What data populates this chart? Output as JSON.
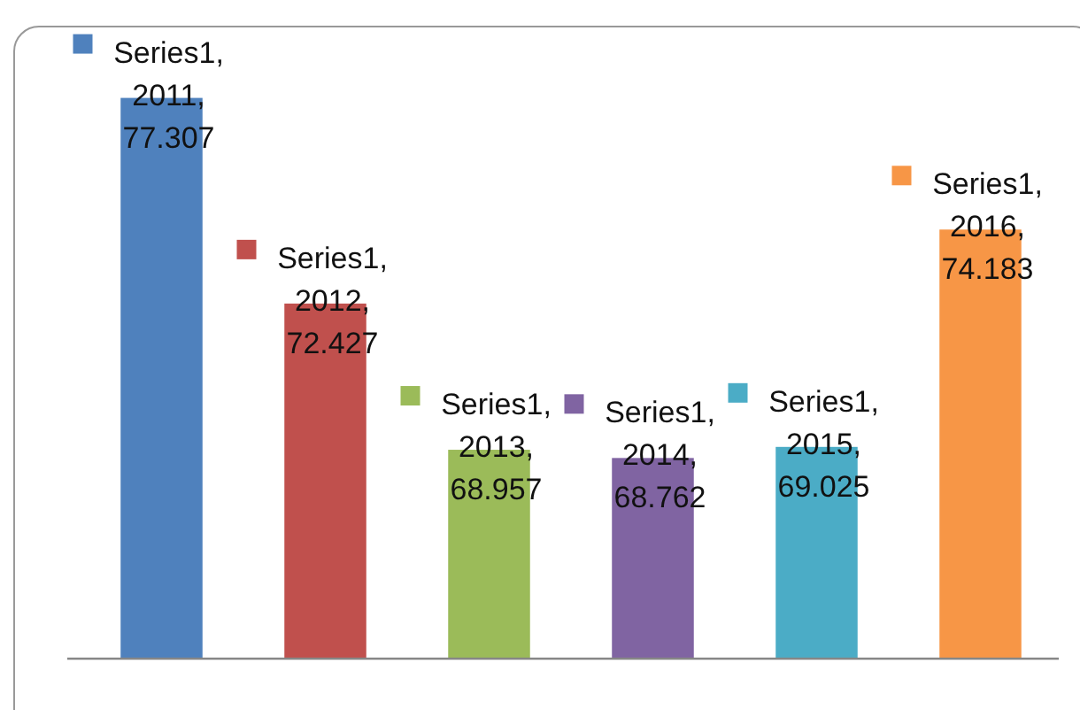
{
  "chart_data": {
    "type": "bar",
    "categories": [
      null,
      null,
      null,
      null,
      null,
      null
    ],
    "series": [
      {
        "values": [
          77.307,
          72.427,
          68.957,
          68.762,
          69.025,
          74.183
        ],
        "colors": [
          "#4f81bd",
          "#c0504d",
          "#9bbb59",
          "#8064a2",
          "#4bacc6",
          "#f79646"
        ],
        "value_labels": [
          "Series1, 2011, 77.307",
          "Series1, 2012, 72.427",
          "Series1, 2013, 68.957",
          "Series1, 2014, 68.762",
          "Series1, 2015, 69.025",
          "Series1, 2016, 74.183"
        ]
      }
    ],
    "ylim": [
      64,
      79
    ]
  }
}
